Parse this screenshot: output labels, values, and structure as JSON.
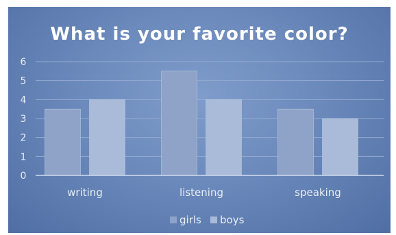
{
  "chart_data": {
    "type": "bar",
    "title": "What is your favorite color?",
    "categories": [
      "writing",
      "listening",
      "speaking"
    ],
    "series": [
      {
        "name": "girls",
        "values": [
          3.5,
          5.5,
          3.5
        ],
        "color": "#8ea3c7"
      },
      {
        "name": "boys",
        "values": [
          4,
          4,
          3
        ],
        "color": "#a9bbd9"
      }
    ],
    "yticks": [
      "0",
      "1",
      "2",
      "3",
      "4",
      "5",
      "6"
    ],
    "ylim": [
      0,
      6
    ],
    "xlabel": "",
    "ylabel": "",
    "grid": true,
    "legend_position": "bottom"
  }
}
